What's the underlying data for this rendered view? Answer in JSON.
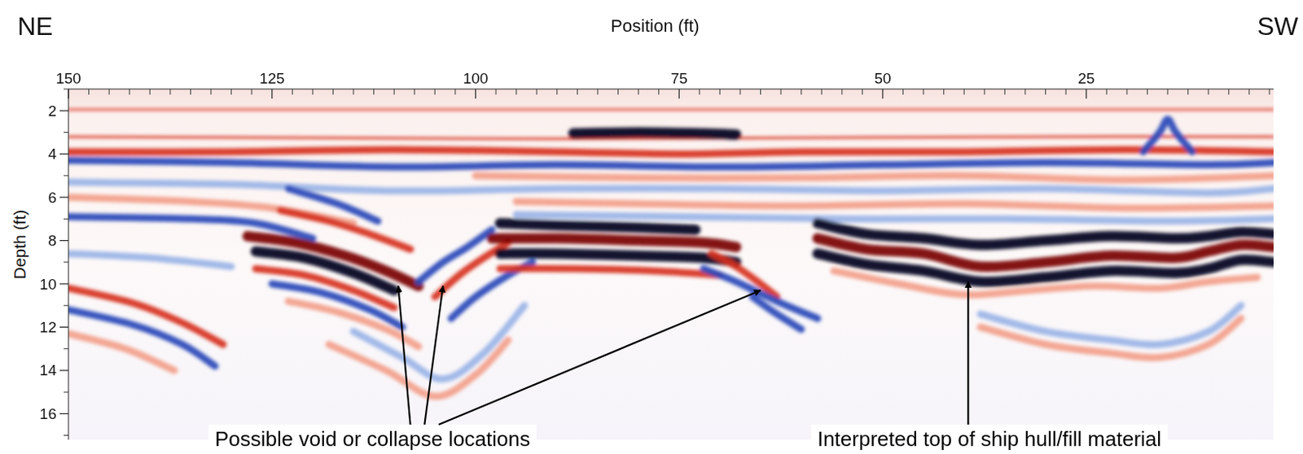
{
  "chart_data": {
    "type": "radargram",
    "x_label": "Position (ft)",
    "y_label": "Depth (ft)",
    "corner_labels": {
      "left": "NE",
      "right": "SW"
    },
    "xlim": [
      150,
      2
    ],
    "ylim": [
      1,
      17.2
    ],
    "xticks": [
      150,
      125,
      100,
      75,
      50,
      25
    ],
    "yticks": [
      2,
      4,
      6,
      8,
      10,
      12,
      14,
      16
    ],
    "series": [
      {
        "color": "#e0483a",
        "line_style": "thin",
        "x": [
          150,
          100,
          50,
          2
        ],
        "values": [
          1.95,
          1.95,
          1.95,
          1.95
        ]
      },
      {
        "color": "#d6301e",
        "line_style": "thin",
        "x": [
          150,
          120,
          90,
          60,
          30,
          2
        ],
        "values": [
          3.2,
          3.25,
          3.3,
          3.25,
          3.2,
          3.2
        ]
      },
      {
        "color": "#050520",
        "line_style": "thick",
        "x": [
          88,
          80,
          72,
          68
        ],
        "values": [
          3.05,
          3.0,
          3.05,
          3.1
        ]
      },
      {
        "color": "#d6301e",
        "line_style": "medium",
        "x": [
          150,
          130,
          110,
          90,
          75,
          60,
          40,
          20,
          2
        ],
        "values": [
          3.9,
          3.9,
          3.8,
          3.9,
          4.0,
          3.9,
          3.9,
          3.8,
          3.9
        ]
      },
      {
        "color": "#2848b8",
        "line_style": "medium",
        "x": [
          150,
          130,
          110,
          90,
          70,
          50,
          30,
          10,
          2
        ],
        "values": [
          4.3,
          4.4,
          4.6,
          4.5,
          4.6,
          4.5,
          4.4,
          4.5,
          4.4
        ]
      },
      {
        "color": "#f2a08a",
        "line_style": "medium",
        "x": [
          100,
          80,
          60,
          40,
          20,
          2
        ],
        "values": [
          5.0,
          5.1,
          5.1,
          5.0,
          5.2,
          5.0
        ]
      },
      {
        "color": "#9ab4e6",
        "line_style": "medium",
        "x": [
          150,
          130,
          110,
          90,
          70,
          50,
          30,
          10,
          2
        ],
        "values": [
          5.3,
          5.4,
          5.7,
          5.6,
          5.6,
          5.7,
          5.6,
          5.8,
          5.6
        ]
      },
      {
        "color": "#f2a08a",
        "line_style": "medium",
        "x": [
          150,
          135,
          125,
          115
        ],
        "values": [
          6.0,
          6.2,
          6.5,
          7.2
        ]
      },
      {
        "color": "#f2a08a",
        "line_style": "medium",
        "x": [
          95,
          80,
          60,
          40,
          20,
          2
        ],
        "values": [
          6.2,
          6.3,
          6.4,
          6.3,
          6.5,
          6.4
        ]
      },
      {
        "color": "#2848b8",
        "line_style": "medium",
        "x": [
          150,
          135,
          127,
          120
        ],
        "values": [
          6.9,
          7.0,
          7.2,
          7.9
        ]
      },
      {
        "color": "#9ab4e6",
        "line_style": "medium",
        "x": [
          95,
          75,
          55,
          35,
          15,
          2
        ],
        "values": [
          6.8,
          6.9,
          7.0,
          7.0,
          7.1,
          7.0
        ]
      },
      {
        "color": "#2848b8",
        "line_style": "medium",
        "x": [
          123,
          117,
          112
        ],
        "values": [
          5.6,
          6.3,
          7.1
        ]
      },
      {
        "color": "#d6301e",
        "line_style": "medium",
        "x": [
          124,
          118,
          113,
          108
        ],
        "values": [
          6.6,
          7.1,
          7.7,
          8.4
        ]
      },
      {
        "color": "#7a0000",
        "line_style": "thick",
        "x": [
          128,
          122,
          116,
          111,
          107
        ],
        "values": [
          7.8,
          8.1,
          8.7,
          9.4,
          10.1
        ]
      },
      {
        "color": "#050520",
        "line_style": "thick",
        "x": [
          127,
          121,
          115,
          110
        ],
        "values": [
          8.5,
          8.8,
          9.5,
          10.3
        ]
      },
      {
        "color": "#d6301e",
        "line_style": "medium",
        "x": [
          127,
          121,
          115,
          110
        ],
        "values": [
          9.3,
          9.6,
          10.3,
          11.1
        ]
      },
      {
        "color": "#2848b8",
        "line_style": "medium",
        "x": [
          125,
          119,
          113,
          109
        ],
        "values": [
          10.0,
          10.4,
          11.2,
          12.0
        ]
      },
      {
        "color": "#f2a08a",
        "line_style": "medium",
        "x": [
          123,
          117,
          111,
          107
        ],
        "values": [
          10.8,
          11.3,
          12.1,
          12.9
        ]
      },
      {
        "color": "#2848b8",
        "line_style": "medium",
        "x": [
          107,
          104,
          101,
          98
        ],
        "values": [
          9.9,
          9.0,
          8.3,
          7.5
        ]
      },
      {
        "color": "#d6301e",
        "line_style": "medium",
        "x": [
          105,
          102,
          99,
          96
        ],
        "values": [
          10.6,
          9.6,
          8.8,
          8.1
        ]
      },
      {
        "color": "#2848b8",
        "line_style": "medium",
        "x": [
          103,
          100,
          96,
          93
        ],
        "values": [
          11.6,
          10.6,
          9.6,
          9.0
        ]
      },
      {
        "color": "#9ab4e6",
        "line_style": "medium",
        "x": [
          115,
          109,
          104,
          99,
          94
        ],
        "values": [
          12.2,
          13.4,
          14.4,
          13.2,
          11.0
        ]
      },
      {
        "color": "#f2a08a",
        "line_style": "medium",
        "x": [
          118,
          111,
          105,
          100,
          96
        ],
        "values": [
          12.8,
          14.0,
          15.2,
          14.2,
          12.6
        ]
      },
      {
        "color": "#050520",
        "line_style": "thick",
        "x": [
          97,
          90,
          80,
          73
        ],
        "values": [
          7.2,
          7.3,
          7.4,
          7.5
        ]
      },
      {
        "color": "#7a0000",
        "line_style": "thick",
        "x": [
          98,
          90,
          80,
          72,
          68
        ],
        "values": [
          7.9,
          7.9,
          8.0,
          8.1,
          8.3
        ]
      },
      {
        "color": "#050520",
        "line_style": "thick",
        "x": [
          97,
          90,
          80,
          72,
          68
        ],
        "values": [
          8.6,
          8.6,
          8.7,
          8.8,
          9.0
        ]
      },
      {
        "color": "#d6301e",
        "line_style": "medium",
        "x": [
          97,
          88,
          78,
          70
        ],
        "values": [
          9.3,
          9.3,
          9.4,
          9.6
        ]
      },
      {
        "color": "#d6301e",
        "line_style": "medium",
        "x": [
          71,
          68,
          65,
          63
        ],
        "values": [
          8.6,
          9.2,
          10.0,
          10.6
        ]
      },
      {
        "color": "#2848b8",
        "line_style": "medium",
        "x": [
          66,
          63,
          60
        ],
        "values": [
          10.6,
          11.4,
          12.1
        ]
      },
      {
        "color": "#2848b8",
        "line_style": "medium",
        "x": [
          72,
          68,
          63,
          58
        ],
        "values": [
          9.3,
          9.9,
          10.8,
          11.6
        ]
      },
      {
        "color": "#050520",
        "line_style": "thick",
        "x": [
          58,
          52,
          45,
          38,
          30,
          22,
          14,
          10,
          6,
          2
        ],
        "values": [
          7.2,
          7.7,
          7.9,
          8.2,
          8.0,
          7.8,
          7.9,
          7.8,
          7.6,
          7.7
        ]
      },
      {
        "color": "#7a0000",
        "line_style": "thick",
        "x": [
          58,
          52,
          45,
          38,
          30,
          22,
          14,
          10,
          6,
          2
        ],
        "values": [
          7.9,
          8.4,
          8.6,
          9.2,
          9.0,
          8.7,
          8.8,
          8.5,
          8.2,
          8.3
        ]
      },
      {
        "color": "#050520",
        "line_style": "thick",
        "x": [
          58,
          52,
          45,
          38,
          30,
          22,
          14,
          10,
          6,
          2
        ],
        "values": [
          8.6,
          9.1,
          9.4,
          9.9,
          9.7,
          9.4,
          9.5,
          9.3,
          8.9,
          9.0
        ]
      },
      {
        "color": "#f2a08a",
        "line_style": "medium",
        "x": [
          56,
          48,
          40,
          32,
          24,
          16,
          10,
          4
        ],
        "values": [
          9.4,
          10.0,
          10.5,
          10.3,
          10.1,
          10.2,
          9.9,
          9.7
        ]
      },
      {
        "color": "#9ab4e6",
        "line_style": "medium",
        "x": [
          38,
          30,
          22,
          16,
          10,
          6
        ],
        "values": [
          11.4,
          12.2,
          12.6,
          12.8,
          12.2,
          11.0
        ]
      },
      {
        "color": "#f2a08a",
        "line_style": "medium",
        "x": [
          38,
          30,
          22,
          16,
          10,
          6
        ],
        "values": [
          12.0,
          12.8,
          13.2,
          13.4,
          12.8,
          11.6
        ]
      },
      {
        "color": "#d6301e",
        "line_style": "medium",
        "x": [
          150,
          142,
          136,
          131
        ],
        "values": [
          10.2,
          10.9,
          11.8,
          12.8
        ]
      },
      {
        "color": "#2848b8",
        "line_style": "medium",
        "x": [
          150,
          142,
          136,
          132
        ],
        "values": [
          11.2,
          11.9,
          12.8,
          13.8
        ]
      },
      {
        "color": "#f2a08a",
        "line_style": "medium",
        "x": [
          150,
          143,
          137
        ],
        "values": [
          12.3,
          13.0,
          14.0
        ]
      },
      {
        "color": "#9ab4e6",
        "line_style": "medium",
        "x": [
          150,
          140,
          130
        ],
        "values": [
          8.6,
          8.8,
          9.2
        ]
      },
      {
        "color": "#2848b8",
        "line_style": "medium",
        "x": [
          18,
          16,
          15,
          14,
          12
        ],
        "values": [
          3.9,
          3.0,
          2.4,
          3.0,
          3.9
        ]
      }
    ],
    "annotations": [
      {
        "text": "Possible void or collapse locations",
        "x": [
          109.5,
          104,
          65
        ],
        "y": [
          10.1,
          10.1,
          10.3
        ]
      },
      {
        "text": "Interpreted top of ship hull/fill material",
        "x": [
          39.5
        ],
        "y": [
          9.9
        ]
      }
    ]
  }
}
